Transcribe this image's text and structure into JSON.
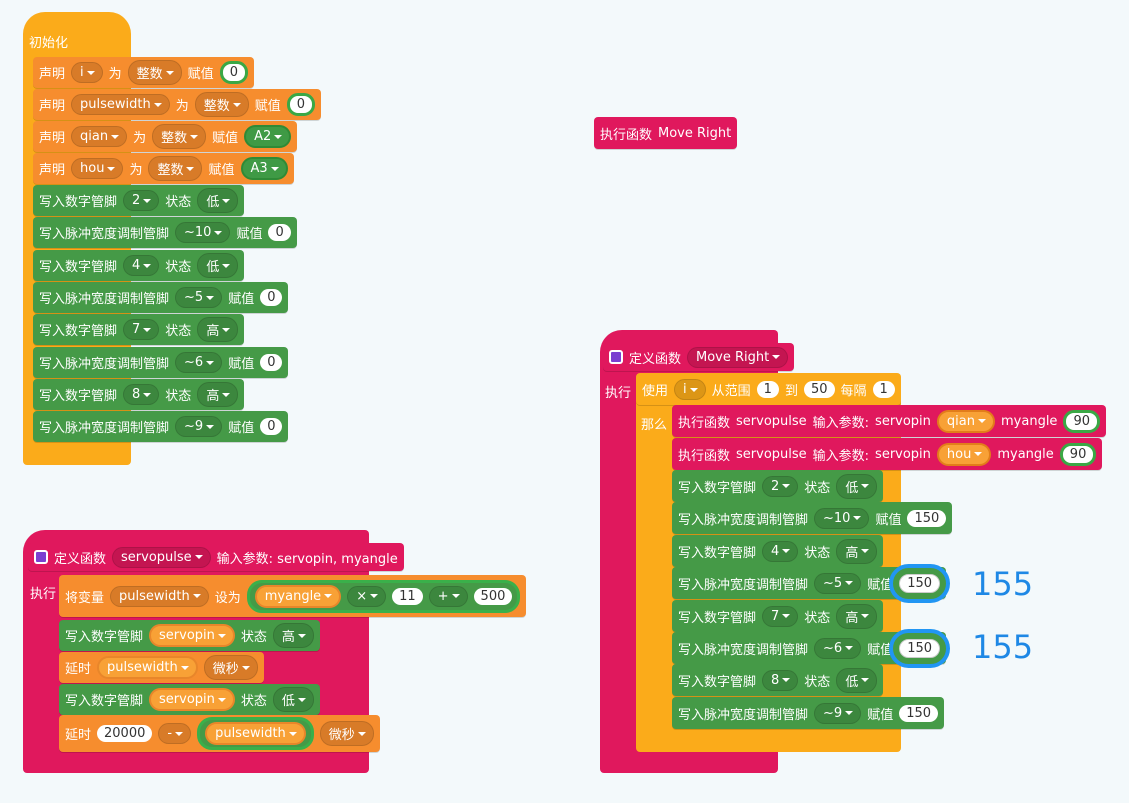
{
  "setup": {
    "hat": "初始化",
    "blocks": [
      [
        "声明",
        "i",
        "为",
        "整数",
        "赋值",
        "0"
      ],
      [
        "声明",
        "pulsewidth",
        "为",
        "整数",
        "赋值",
        "0"
      ],
      [
        "声明",
        "qian",
        "为",
        "整数",
        "赋值",
        "A2"
      ],
      [
        "声明",
        "hou",
        "为",
        "整数",
        "赋值",
        "A3"
      ],
      [
        "写入数字管脚",
        "2",
        "状态",
        "低"
      ],
      [
        "写入脉冲宽度调制管脚",
        "~10",
        "赋值",
        "0"
      ],
      [
        "写入数字管脚",
        "4",
        "状态",
        "低"
      ],
      [
        "写入脉冲宽度调制管脚",
        "~5",
        "赋值",
        "0"
      ],
      [
        "写入数字管脚",
        "7",
        "状态",
        "高"
      ],
      [
        "写入脉冲宽度调制管脚",
        "~6",
        "赋值",
        "0"
      ],
      [
        "写入数字管脚",
        "8",
        "状态",
        "高"
      ],
      [
        "写入脉冲宽度调制管脚",
        "~9",
        "赋值",
        "0"
      ]
    ]
  },
  "call": [
    "执行函数",
    "Move Right"
  ],
  "servopulse": {
    "header": [
      "定义函数",
      "servopulse",
      "输入参数: servopin, myangle"
    ],
    "do": "执行",
    "blocks": [
      [
        "将变量",
        "pulsewidth",
        "设为",
        "myangle",
        "×",
        "11",
        "+",
        "500"
      ],
      [
        "写入数字管脚",
        "servopin",
        "状态",
        "高"
      ],
      [
        "延时",
        "pulsewidth",
        "微秒"
      ],
      [
        "写入数字管脚",
        "servopin",
        "状态",
        "低"
      ],
      [
        "延时",
        "20000",
        "-",
        "pulsewidth",
        "微秒"
      ]
    ]
  },
  "move_right": {
    "header": [
      "定义函数",
      "Move Right"
    ],
    "do": "执行",
    "loop": [
      "使用",
      "i",
      "从范围",
      "1",
      "到",
      "50",
      "每隔",
      "1"
    ],
    "then": "那么",
    "blocks": [
      [
        "执行函数",
        "servopulse",
        "输入参数:",
        "servopin",
        "qian",
        "myangle",
        "90"
      ],
      [
        "执行函数",
        "servopulse",
        "输入参数:",
        "servopin",
        "hou",
        "myangle",
        "90"
      ],
      [
        "写入数字管脚",
        "2",
        "状态",
        "低"
      ],
      [
        "写入脉冲宽度调制管脚",
        "~10",
        "赋值",
        "150"
      ],
      [
        "写入数字管脚",
        "4",
        "状态",
        "高"
      ],
      [
        "写入脉冲宽度调制管脚",
        "~5",
        "赋值",
        "150"
      ],
      [
        "写入数字管脚",
        "7",
        "状态",
        "高"
      ],
      [
        "写入脉冲宽度调制管脚",
        "~6",
        "赋值",
        "150"
      ],
      [
        "写入数字管脚",
        "8",
        "状态",
        "低"
      ],
      [
        "写入脉冲宽度调制管脚",
        "~9",
        "赋值",
        "150"
      ]
    ]
  },
  "annotations": [
    "155",
    "155"
  ]
}
